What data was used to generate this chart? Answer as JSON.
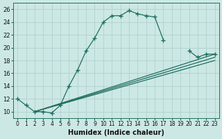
{
  "background_color": "#cce8e4",
  "grid_color": "#aaccca",
  "line_color": "#1e6e60",
  "marker": "+",
  "xlabel": "Humidex (Indice chaleur)",
  "xlim": [
    -0.5,
    23.5
  ],
  "ylim": [
    9,
    27
  ],
  "xticks": [
    0,
    1,
    2,
    3,
    4,
    5,
    6,
    7,
    8,
    9,
    10,
    11,
    12,
    13,
    14,
    15,
    16,
    17,
    18,
    19,
    20,
    21,
    22,
    23
  ],
  "yticks": [
    10,
    12,
    14,
    16,
    18,
    20,
    22,
    24,
    26
  ],
  "curve_x": [
    0,
    1,
    2,
    3,
    4,
    5,
    6,
    7,
    8,
    9,
    10,
    11,
    12,
    13,
    14,
    15,
    16,
    17,
    18,
    19,
    20,
    21,
    22,
    23
  ],
  "curve_y": [
    12,
    11,
    10,
    10,
    9.8,
    11,
    14,
    16.5,
    19.5,
    21.5,
    24,
    25,
    25,
    25.8,
    25.3,
    25,
    24.8,
    21.2,
    null,
    null,
    19.5,
    18.5,
    19,
    19
  ],
  "line1_x": [
    2,
    23
  ],
  "line1_y": [
    10,
    19
  ],
  "line2_x": [
    2,
    23
  ],
  "line2_y": [
    10,
    18.5
  ],
  "line3_x": [
    2,
    23
  ],
  "line3_y": [
    10,
    18.0
  ]
}
